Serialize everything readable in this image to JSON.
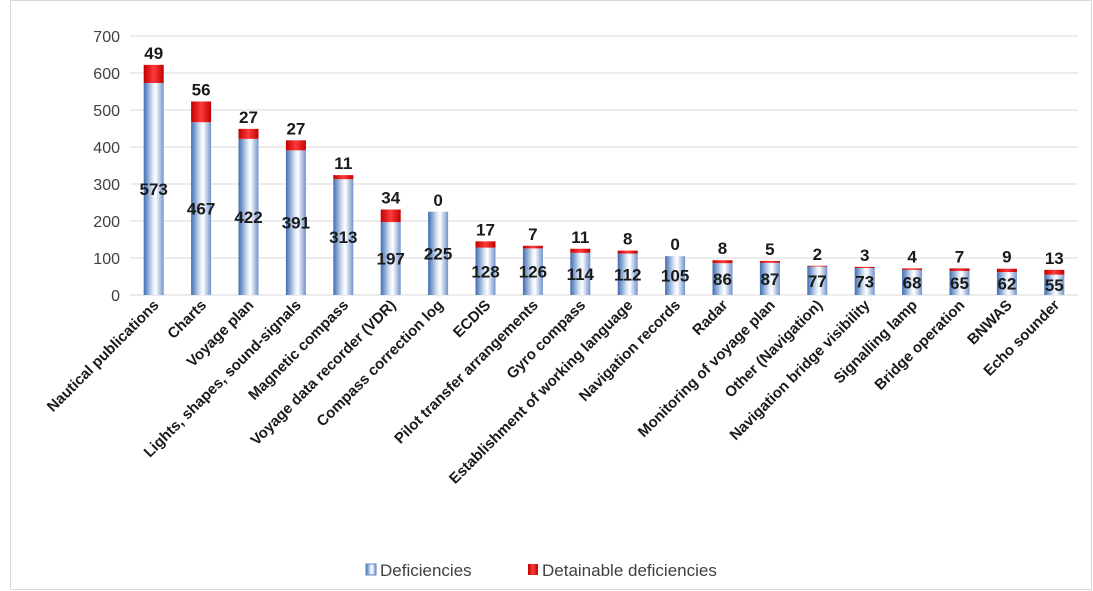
{
  "chart_data": {
    "type": "bar",
    "stacked": true,
    "categories": [
      "Nautical publications",
      "Charts",
      "Voyage plan",
      "Lights, shapes, sound-signals",
      "Magnetic compass",
      "Voyage data recorder (VDR)",
      "Compass correction log",
      "ECDIS",
      "Pilot transfer arrangements",
      "Gyro compass",
      "Establishment of working language",
      "Navigation records",
      "Radar",
      "Monitoring of voyage plan",
      "Other (Navigation)",
      "Navigation bridge visibility",
      "Signalling lamp",
      "Bridge operation",
      "BNWAS",
      "Echo sounder"
    ],
    "series": [
      {
        "name": "Deficiencies",
        "color": "#5b84c4",
        "values": [
          573,
          467,
          422,
          391,
          313,
          197,
          225,
          128,
          126,
          114,
          112,
          105,
          86,
          87,
          77,
          73,
          68,
          65,
          62,
          55
        ]
      },
      {
        "name": "Detainable deficiencies",
        "color": "#e3141d",
        "values": [
          49,
          56,
          27,
          27,
          11,
          34,
          0,
          17,
          7,
          11,
          8,
          0,
          8,
          5,
          2,
          3,
          4,
          7,
          9,
          13
        ]
      }
    ],
    "y_ticks": [
      0,
      100,
      200,
      300,
      400,
      500,
      600,
      700
    ],
    "ylim": [
      0,
      700
    ],
    "grid": true,
    "legend_position": "bottom",
    "title": "",
    "xlabel": "",
    "ylabel": ""
  }
}
